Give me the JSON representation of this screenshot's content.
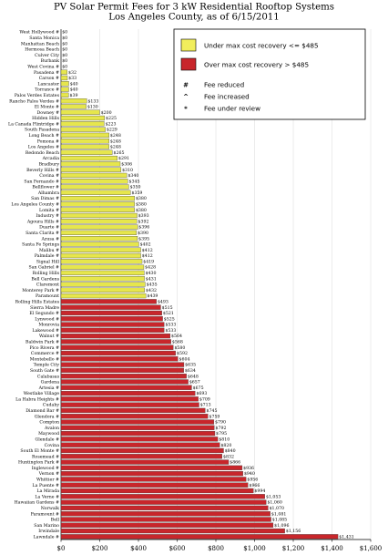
{
  "chart_data": {
    "type": "bar",
    "orientation": "horizontal",
    "title_lines": [
      "PV Solar Permit Fees for 3 kW Residential Rooftop Systems",
      "Los Angeles County, as of 6/15/2011"
    ],
    "xlim": [
      0,
      1600
    ],
    "x_ticks": [
      0,
      200,
      400,
      600,
      800,
      1000,
      1200,
      1400,
      1600
    ],
    "x_tick_labels": [
      "$0",
      "$200",
      "$400",
      "$600",
      "$800",
      "$1,000",
      "$1,200",
      "$1,400",
      "$1,600"
    ],
    "threshold": 485,
    "colors": {
      "low": "#e6e64c",
      "high": "#c8262b",
      "edge": "#404040"
    },
    "legend": {
      "items": [
        {
          "color": "#f1ee5c",
          "label": "Under max cost recovery <= $485"
        },
        {
          "color": "#c8262b",
          "label": "Over max cost recovery > $485"
        }
      ],
      "notes": [
        {
          "symbol": "#",
          "label": "Fee reduced"
        },
        {
          "symbol": "^",
          "label": "Fee increased"
        },
        {
          "symbol": "*",
          "label": "Fee under review"
        }
      ]
    },
    "categories": [
      "West Hollywood #",
      "Santa Monica",
      "Manhattan Beach",
      "Hermosa Beach",
      "Culver City",
      "Burbank",
      "West Covina #",
      "Pasadena #",
      "Carson #",
      "Lancaster",
      "Torrance #",
      "Palos Verdes Estates",
      "Rancho Palos Verdes #",
      "El Monte #",
      "Downey #",
      "Hidden Hills",
      "La Canada Flintridge #",
      "South Pasadena",
      "Long Beach #",
      "Pomona #",
      "Los Angeles #",
      "Redondo Beach",
      "Arcadia",
      "Bradbury",
      "Beverly Hills #",
      "Covina #",
      "San Fernando #",
      "Bellflower #",
      "Alhambra",
      "San Dimas #",
      "Los Angeles County #",
      "Lomita #",
      "Industry #",
      "Agoura Hills #",
      "Duarte #",
      "Santa Clarita #",
      "Azusa #",
      "Santa Fe Springs",
      "Malibu #",
      "Palmdale #",
      "Signal Hill",
      "San Gabriel #",
      "Rolling Hills",
      "Bell Gardens",
      "Claremont",
      "Monterey Park #",
      "Paramount",
      "Rolling Hills Estates",
      "Sierra Madre",
      "El Segundo #",
      "Lynwood #",
      "Monrovia",
      "Lakewood #",
      "Walnut #",
      "Baldwin Park #",
      "Pico Rivera #",
      "Commerce #",
      "Montebello #",
      "Temple City",
      "South Gate #",
      "Calabasas",
      "Gardena",
      "Artesia #",
      "Westlake Village",
      "La Habra Heights #",
      "Cudahy",
      "Diamond Bar #",
      "Glendora #",
      "Compton",
      "Avalon",
      "Maywood",
      "Glendale #",
      "Covina",
      "South El Monte #",
      "Rosemead #",
      "Huntington Park #",
      "Inglewood #",
      "Vernon #",
      "Whittier #",
      "La Puente #",
      "La Mirada",
      "La Verne #",
      "Hawaiian Gardens #",
      "Norwalk",
      "Paramount #",
      "Bell",
      "San Marino",
      "Irwindale",
      "Lawndale #"
    ],
    "values": [
      0,
      0,
      0,
      0,
      0,
      0,
      0,
      32,
      33,
      40,
      40,
      39,
      133,
      130,
      200,
      225,
      223,
      229,
      248,
      248,
      248,
      265,
      291,
      306,
      310,
      340,
      345,
      350,
      359,
      380,
      380,
      380,
      393,
      392,
      396,
      390,
      395,
      402,
      412,
      412,
      419,
      428,
      430,
      431,
      435,
      432,
      439,
      493,
      515,
      521,
      525,
      533,
      533,
      564,
      568,
      580,
      592,
      604,
      635,
      634,
      648,
      657,
      675,
      693,
      709,
      713,
      745,
      759,
      790,
      792,
      795,
      810,
      820,
      840,
      832,
      866,
      936,
      940,
      956,
      966,
      994,
      1053,
      1060,
      1070,
      1081,
      1085,
      1096,
      1156,
      1431
    ],
    "value_labels": [
      "$0",
      "$0",
      "$0",
      "$0",
      "$0",
      "$0",
      "$0",
      "$32",
      "$33",
      "$40",
      "$40",
      "$39",
      "$133",
      "$130",
      "$200",
      "$225",
      "$223",
      "$229",
      "$248",
      "$248",
      "$248",
      "$265",
      "$291",
      "$306",
      "$310",
      "$340",
      "$345",
      "$350",
      "$359",
      "$380",
      "$380",
      "$380",
      "$393",
      "$392",
      "$396",
      "$390",
      "$395",
      "$402",
      "$412",
      "$412",
      "$419",
      "$428",
      "$430",
      "$431",
      "$435",
      "$432",
      "$439",
      "$493",
      "$515",
      "$521",
      "$525",
      "$533",
      "$533",
      "$564",
      "$568",
      "$580",
      "$592",
      "$604",
      "$635",
      "$634",
      "$648",
      "$657",
      "$675",
      "$693",
      "$709",
      "$713",
      "$745",
      "$759",
      "$790",
      "$792",
      "$795",
      "$810",
      "$820",
      "$840",
      "$832",
      "$866",
      "$936",
      "$940",
      "$956",
      "$966",
      "$994",
      "$1,053",
      "$1,060",
      "$1,070",
      "$1,081",
      "$1,085",
      "$1,096",
      "$1,156",
      "$1,431"
    ]
  }
}
